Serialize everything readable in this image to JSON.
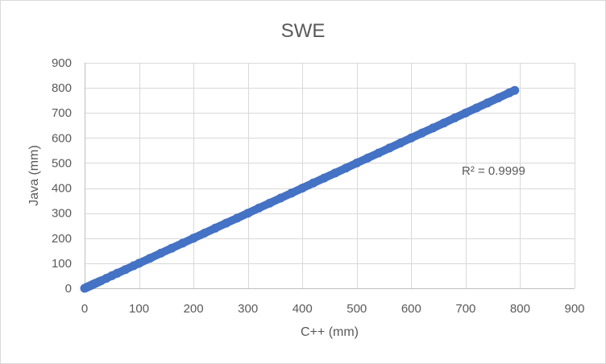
{
  "chart_data": {
    "type": "scatter",
    "title": "SWE",
    "xlabel": "C++ (mm)",
    "ylabel": "Java (mm)",
    "xlim": [
      0,
      900
    ],
    "ylim": [
      0,
      900
    ],
    "x_ticks": [
      0,
      100,
      200,
      300,
      400,
      500,
      600,
      700,
      800,
      900
    ],
    "y_ticks": [
      0,
      100,
      200,
      300,
      400,
      500,
      600,
      700,
      800,
      900
    ],
    "grid": true,
    "marker_color": "#4472c4",
    "x": [
      0,
      2,
      5,
      8,
      12,
      15,
      18,
      20,
      25,
      30,
      40,
      50,
      60,
      75,
      90,
      100,
      120,
      140,
      160,
      180,
      200,
      220,
      240,
      260,
      280,
      300,
      320,
      340,
      360,
      380,
      400,
      420,
      440,
      460,
      480,
      500,
      520,
      540,
      560,
      580,
      600,
      620,
      640,
      660,
      680,
      700,
      720,
      740,
      760,
      780,
      790
    ],
    "y": [
      0,
      2,
      5,
      8,
      12,
      15,
      18,
      20,
      25,
      30,
      40,
      50,
      60,
      75,
      90,
      100,
      120,
      140,
      160,
      180,
      200,
      220,
      240,
      260,
      280,
      300,
      320,
      340,
      360,
      380,
      400,
      420,
      440,
      460,
      480,
      500,
      520,
      540,
      560,
      580,
      600,
      620,
      640,
      660,
      680,
      700,
      720,
      740,
      760,
      780,
      790
    ],
    "annotation": "R² = 0.9999"
  }
}
